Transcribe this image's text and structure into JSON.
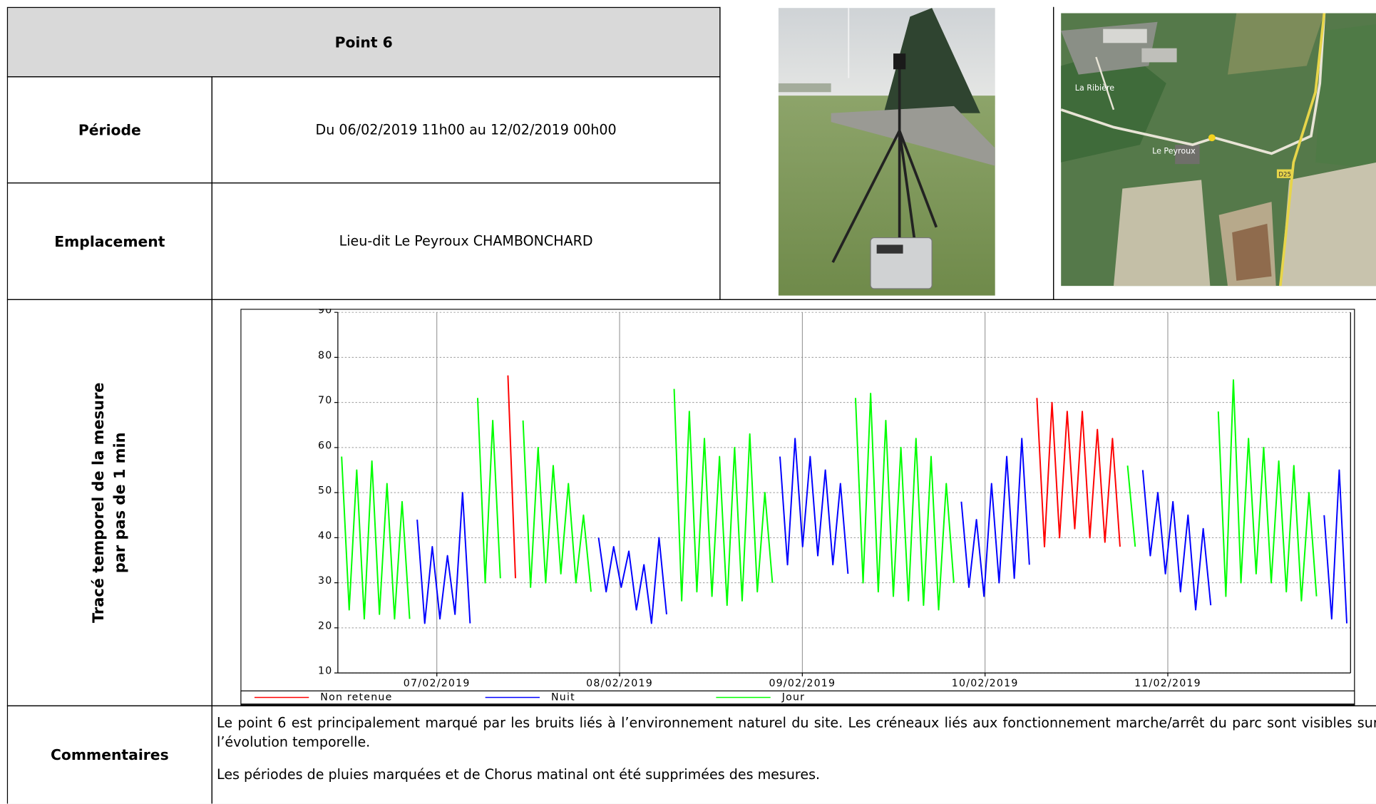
{
  "header": {
    "title": "Point 6"
  },
  "rows": [
    {
      "label": "Période",
      "value": "Du 06/02/2019 11h00 au 12/02/2019 00h00"
    },
    {
      "label": "Emplacement",
      "value": "Lieu-dit Le Peyroux CHAMBONCHARD"
    }
  ],
  "map": {
    "labels": [
      "La Ribière",
      "Le Peyroux",
      "D25"
    ]
  },
  "chart_section": {
    "label_lines": [
      "Tracé temporel de la mesure",
      "par pas de 1 min"
    ]
  },
  "comments": {
    "label": "Commentaires",
    "paragraphs": [
      "Le point 6 est principalement marqué par les bruits liés à l’environnement naturel du site. Les créneaux liés aux fonctionnement marche/arrêt du parc sont visibles sur l’évolution temporelle.",
      "Les périodes de pluies marquées et de Chorus matinal ont été supprimées des mesures."
    ]
  },
  "chart_data": {
    "type": "line",
    "xlim": [
      "2019-02-06T11:00",
      "2019-02-12T00:00"
    ],
    "xticks": [
      {
        "value": "2019-02-07T00:00",
        "label": "07/02/2019"
      },
      {
        "value": "2019-02-08T00:00",
        "label": "08/02/2019"
      },
      {
        "value": "2019-02-09T00:00",
        "label": "09/02/2019"
      },
      {
        "value": "2019-02-10T00:00",
        "label": "10/02/2019"
      },
      {
        "value": "2019-02-11T00:00",
        "label": "11/02/2019"
      }
    ],
    "ylim": [
      10,
      90
    ],
    "yticks": [
      10,
      20,
      30,
      40,
      50,
      60,
      70,
      80,
      90
    ],
    "grid": true,
    "legend": "bottom",
    "series": [
      {
        "name": "Non retenue",
        "color": "#ff0000",
        "high": [
          null,
          null,
          null,
          null,
          null,
          null,
          null,
          null,
          null,
          null,
          null,
          76,
          null,
          null,
          null,
          null,
          null,
          null,
          null,
          null,
          null,
          null,
          null,
          null,
          null,
          null,
          null,
          null,
          null,
          null,
          null,
          null,
          null,
          null,
          null,
          null,
          null,
          null,
          null,
          null,
          null,
          null,
          null,
          null,
          null,
          null,
          71,
          70,
          68,
          68,
          64,
          62,
          null,
          null,
          null,
          null,
          null,
          null,
          null,
          null,
          null,
          null,
          null,
          null,
          null,
          null,
          null
        ],
        "low": [
          null,
          null,
          null,
          null,
          null,
          null,
          null,
          null,
          null,
          null,
          null,
          31,
          null,
          null,
          null,
          null,
          null,
          null,
          null,
          null,
          null,
          null,
          null,
          null,
          null,
          null,
          null,
          null,
          null,
          null,
          null,
          null,
          null,
          null,
          null,
          null,
          null,
          null,
          null,
          null,
          null,
          null,
          null,
          null,
          null,
          null,
          38,
          40,
          42,
          40,
          39,
          38,
          null,
          null,
          null,
          null,
          null,
          null,
          null,
          null,
          null,
          null,
          null,
          null,
          null,
          null,
          null
        ]
      },
      {
        "name": "Nuit",
        "color": "#0000ff",
        "high": [
          null,
          null,
          null,
          null,
          null,
          44,
          38,
          36,
          50,
          null,
          null,
          null,
          null,
          null,
          null,
          null,
          null,
          40,
          38,
          37,
          34,
          40,
          null,
          null,
          null,
          null,
          null,
          null,
          null,
          58,
          62,
          58,
          55,
          52,
          null,
          null,
          null,
          null,
          null,
          null,
          null,
          48,
          44,
          52,
          58,
          62,
          null,
          null,
          null,
          null,
          null,
          null,
          null,
          55,
          50,
          48,
          45,
          42,
          null,
          null,
          null,
          null,
          null,
          null,
          null,
          45,
          55
        ],
        "low": [
          null,
          null,
          null,
          null,
          null,
          21,
          22,
          23,
          21,
          null,
          null,
          null,
          null,
          null,
          null,
          null,
          null,
          28,
          29,
          24,
          21,
          23,
          null,
          null,
          null,
          null,
          null,
          null,
          null,
          34,
          38,
          36,
          34,
          32,
          null,
          null,
          null,
          null,
          null,
          null,
          null,
          29,
          27,
          30,
          31,
          34,
          null,
          null,
          null,
          null,
          null,
          null,
          null,
          36,
          32,
          28,
          24,
          25,
          null,
          null,
          null,
          null,
          null,
          null,
          null,
          22,
          21
        ]
      },
      {
        "name": "Jour",
        "color": "#00ff00",
        "high": [
          58,
          55,
          57,
          52,
          48,
          null,
          null,
          null,
          null,
          71,
          66,
          null,
          66,
          60,
          56,
          52,
          45,
          null,
          null,
          null,
          null,
          null,
          73,
          68,
          62,
          58,
          60,
          63,
          50,
          null,
          null,
          null,
          null,
          null,
          71,
          72,
          66,
          60,
          62,
          58,
          52,
          null,
          null,
          null,
          null,
          null,
          null,
          null,
          null,
          null,
          null,
          null,
          56,
          null,
          null,
          null,
          null,
          null,
          68,
          75,
          62,
          60,
          57,
          56,
          50,
          null,
          null
        ],
        "low": [
          24,
          22,
          23,
          22,
          22,
          null,
          null,
          null,
          null,
          30,
          31,
          null,
          29,
          30,
          32,
          30,
          28,
          null,
          null,
          null,
          null,
          null,
          26,
          28,
          27,
          25,
          26,
          28,
          30,
          null,
          null,
          null,
          null,
          null,
          30,
          28,
          27,
          26,
          25,
          24,
          30,
          null,
          null,
          null,
          null,
          null,
          null,
          null,
          null,
          null,
          null,
          null,
          38,
          null,
          null,
          null,
          null,
          null,
          27,
          30,
          32,
          30,
          28,
          26,
          27,
          null,
          null
        ]
      }
    ]
  }
}
